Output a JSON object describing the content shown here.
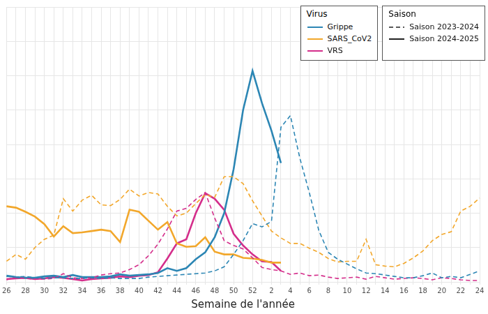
{
  "chart_data": {
    "type": "line",
    "x_label": "Semaine de l'année",
    "categories": [
      "26",
      null,
      "28",
      null,
      "30",
      null,
      "32",
      null,
      "34",
      null,
      "36",
      null,
      "38",
      null,
      "40",
      null,
      "42",
      null,
      "44",
      null,
      "46",
      null,
      "48",
      null,
      "50",
      null,
      "52",
      null,
      "2",
      null,
      "4",
      null,
      "6",
      null,
      "8",
      null,
      "10",
      null,
      "12",
      null,
      "14",
      null,
      "16",
      null,
      "18",
      null,
      "20",
      null,
      "22",
      null,
      "24"
    ],
    "ylim": [
      0,
      40
    ],
    "yticks": [
      0,
      5,
      10,
      15,
      20,
      25,
      30,
      35,
      40
    ],
    "grid": true,
    "tick_labels": "x",
    "legend": "top right",
    "virus_legend_title": "Virus",
    "season_legend_title": "Saison",
    "seasons": [
      {
        "name": "Saison 2023-2024",
        "line_style": "dashed"
      },
      {
        "name": "Saison 2024-2025",
        "line_style": "solid"
      }
    ],
    "series": [
      {
        "name": "Grippe",
        "color": "#2c86b4",
        "season": "Saison 2023-2024",
        "line_style": "dashed",
        "values": [
          0.8,
          0.7,
          0.8,
          0.6,
          0.5,
          0.6,
          0.6,
          0.5,
          0.5,
          0.6,
          0.5,
          0.6,
          0.5,
          0.5,
          0.5,
          0.7,
          0.8,
          0.9,
          1.0,
          1.1,
          1.2,
          1.3,
          1.6,
          2.2,
          4.0,
          6.0,
          8.5,
          8.0,
          8.8,
          22.5,
          24.2,
          18.0,
          13.0,
          7.5,
          4.3,
          3.3,
          2.6,
          1.9,
          1.3,
          1.2,
          1.0,
          0.8,
          0.6,
          0.6,
          0.9,
          1.3,
          0.6,
          0.8,
          0.6,
          1.1,
          1.6
        ]
      },
      {
        "name": "SARS_CoV2",
        "color": "#f2a72b",
        "season": "Saison 2023-2024",
        "line_style": "dashed",
        "values": [
          3.0,
          4.0,
          3.3,
          5.0,
          6.2,
          6.8,
          12.1,
          10.3,
          11.9,
          12.6,
          11.2,
          11.1,
          12.0,
          13.5,
          12.5,
          13.0,
          12.8,
          11.0,
          9.6,
          10.0,
          11.4,
          12.7,
          12.3,
          15.3,
          15.3,
          14.3,
          11.8,
          9.6,
          7.4,
          6.4,
          5.6,
          5.6,
          4.9,
          4.3,
          3.4,
          2.9,
          3.0,
          3.0,
          6.2,
          2.5,
          2.3,
          2.2,
          2.7,
          3.5,
          4.5,
          6.0,
          6.9,
          7.3,
          10.3,
          11.0,
          12.2
        ]
      },
      {
        "name": "VRS",
        "color": "#d42e8b",
        "season": "Saison 2023-2024",
        "line_style": "dashed",
        "values": [
          0.3,
          0.7,
          0.5,
          0.4,
          0.4,
          0.5,
          1.2,
          0.6,
          0.5,
          0.6,
          1.0,
          1.2,
          1.3,
          1.8,
          2.5,
          3.8,
          5.5,
          7.7,
          10.3,
          10.7,
          12.0,
          13.0,
          9.3,
          6.0,
          5.3,
          4.8,
          3.5,
          2.1,
          1.8,
          1.6,
          1.1,
          1.3,
          0.9,
          1.0,
          0.7,
          0.5,
          0.6,
          0.7,
          0.4,
          0.8,
          0.6,
          0.4,
          0.5,
          0.6,
          0.5,
          0.3,
          0.6,
          0.5,
          0.3,
          0.2,
          0.2
        ]
      },
      {
        "name": "Grippe",
        "color": "#2c86b4",
        "season": "Saison 2024-2025",
        "line_style": "solid",
        "values": [
          0.9,
          0.7,
          0.6,
          0.6,
          0.8,
          0.9,
          0.7,
          1.0,
          0.7,
          0.7,
          0.7,
          0.8,
          1.1,
          0.9,
          1.0,
          1.1,
          1.3,
          2.0,
          1.6,
          2.0,
          3.3,
          4.3,
          6.5,
          10.0,
          16.4,
          25.0,
          30.7,
          26.0,
          22.0,
          17.3,
          null,
          null,
          null,
          null,
          null,
          null,
          null,
          null,
          null,
          null,
          null,
          null,
          null,
          null,
          null,
          null,
          null,
          null,
          null,
          null,
          null
        ]
      },
      {
        "name": "SARS_CoV2",
        "color": "#f2a72b",
        "season": "Saison 2024-2025",
        "line_style": "solid",
        "values": [
          11.0,
          10.8,
          10.2,
          9.5,
          8.4,
          6.6,
          8.1,
          7.1,
          7.2,
          7.4,
          7.6,
          7.4,
          5.8,
          10.5,
          10.2,
          8.9,
          7.6,
          8.7,
          5.6,
          5.1,
          5.2,
          6.5,
          4.4,
          4.0,
          4.0,
          3.5,
          3.4,
          3.2,
          2.8,
          2.8,
          null,
          null,
          null,
          null,
          null,
          null,
          null,
          null,
          null,
          null,
          null,
          null,
          null,
          null,
          null,
          null,
          null,
          null,
          null,
          null,
          null
        ]
      },
      {
        "name": "VRS",
        "color": "#d42e8b",
        "season": "Saison 2024-2025",
        "line_style": "solid",
        "values": [
          0.4,
          0.5,
          0.6,
          0.4,
          0.5,
          0.7,
          0.6,
          0.4,
          0.2,
          0.4,
          0.5,
          0.6,
          0.8,
          0.7,
          0.9,
          1.0,
          1.4,
          3.4,
          5.6,
          6.2,
          10.0,
          12.9,
          12.1,
          10.5,
          7.0,
          5.3,
          4.0,
          3.0,
          2.9,
          1.6,
          null,
          null,
          null,
          null,
          null,
          null,
          null,
          null,
          null,
          null,
          null,
          null,
          null,
          null,
          null,
          null,
          null,
          null,
          null,
          null,
          null
        ]
      }
    ]
  }
}
